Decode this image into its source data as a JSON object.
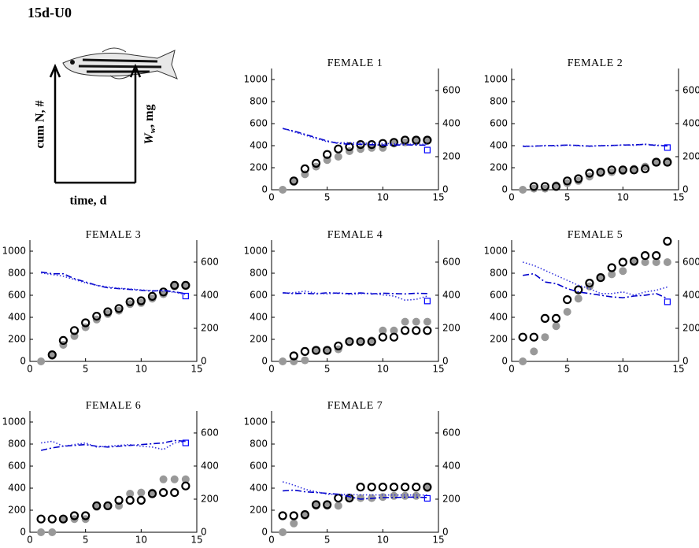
{
  "title": "15d-U0",
  "legend": {
    "ylabel_left": "cum N, #",
    "ylabel_right": {
      "symbol": "W",
      "subscript": "w",
      "unit": ", mg"
    },
    "xlabel": "time, d"
  },
  "chart_data": [
    {
      "type": "scatter",
      "title": "FEMALE 1",
      "x": [
        1,
        2,
        3,
        4,
        5,
        6,
        7,
        8,
        9,
        10,
        11,
        12,
        13,
        14
      ],
      "xlim": [
        0,
        15
      ],
      "xticks": [
        0,
        5,
        10,
        15
      ],
      "ylim": [
        0,
        1100
      ],
      "yticks": [
        0,
        200,
        400,
        600,
        800,
        1000
      ],
      "y2lim": [
        0,
        733
      ],
      "y2ticks": [
        0,
        200,
        400,
        600
      ],
      "series": [
        {
          "color": "#999999",
          "marker": "filled-circle",
          "line": "none",
          "values": [
            0,
            70,
            140,
            210,
            270,
            300,
            350,
            370,
            380,
            380,
            420,
            430,
            440,
            450
          ]
        },
        {
          "color": "#000000",
          "marker": "open-circle",
          "line": "none",
          "values": [
            null,
            80,
            190,
            240,
            320,
            370,
            390,
            410,
            410,
            420,
            430,
            450,
            450,
            450
          ]
        },
        {
          "color": "#0000cc",
          "marker": "none",
          "line": "dash-dot",
          "axis": "y2",
          "values": [
            370,
            355,
            335,
            315,
            295,
            280,
            275,
            275,
            272,
            270,
            270,
            272,
            270,
            270
          ]
        },
        {
          "color": "#3333dd",
          "marker": "none",
          "line": "dotted",
          "axis": "y2",
          "values": [
            372,
            350,
            330,
            310,
            290,
            285,
            285,
            283,
            280,
            280,
            278,
            276,
            275,
            275
          ]
        },
        {
          "color": "#0000ff",
          "marker": "square",
          "line": "none",
          "axis": "y2",
          "values": [
            null,
            null,
            null,
            null,
            null,
            null,
            null,
            null,
            null,
            null,
            null,
            null,
            null,
            240
          ]
        }
      ]
    },
    {
      "type": "scatter",
      "title": "FEMALE 2",
      "x": [
        1,
        2,
        3,
        4,
        5,
        6,
        7,
        8,
        9,
        10,
        11,
        12,
        13,
        14
      ],
      "xlim": [
        0,
        15
      ],
      "xticks": [
        0,
        5,
        10,
        15
      ],
      "ylim": [
        0,
        1100
      ],
      "yticks": [
        0,
        200,
        400,
        600,
        800,
        1000
      ],
      "y2lim": [
        0,
        733
      ],
      "y2ticks": [
        0,
        200,
        400,
        600
      ],
      "series": [
        {
          "color": "#999999",
          "marker": "filled-circle",
          "line": "none",
          "values": [
            0,
            10,
            10,
            40,
            60,
            80,
            120,
            150,
            160,
            170,
            190,
            210,
            250,
            260
          ]
        },
        {
          "color": "#000000",
          "marker": "open-circle",
          "line": "none",
          "values": [
            null,
            30,
            30,
            30,
            80,
            100,
            150,
            160,
            180,
            180,
            180,
            190,
            250,
            250
          ]
        },
        {
          "color": "#0000cc",
          "marker": "none",
          "line": "dash-dot",
          "axis": "y2",
          "values": [
            262,
            264,
            266,
            268,
            270,
            268,
            264,
            266,
            268,
            270,
            272,
            274,
            268,
            265
          ]
        },
        {
          "color": "#3333dd",
          "marker": "none",
          "line": "dotted",
          "axis": "y2",
          "values": [
            265,
            262,
            268,
            264,
            270,
            266,
            262,
            268,
            266,
            272,
            268,
            276,
            270,
            266
          ]
        },
        {
          "color": "#0000ff",
          "marker": "square",
          "line": "none",
          "axis": "y2",
          "values": [
            null,
            null,
            null,
            null,
            null,
            null,
            null,
            null,
            null,
            null,
            null,
            null,
            null,
            255
          ]
        }
      ]
    },
    {
      "type": "scatter",
      "title": "FEMALE 3",
      "x": [
        1,
        2,
        3,
        4,
        5,
        6,
        7,
        8,
        9,
        10,
        11,
        12,
        13,
        14
      ],
      "xlim": [
        0,
        15
      ],
      "xticks": [
        0,
        5,
        10,
        15
      ],
      "ylim": [
        0,
        1100
      ],
      "yticks": [
        0,
        200,
        400,
        600,
        800,
        1000
      ],
      "y2lim": [
        0,
        733
      ],
      "y2ticks": [
        0,
        200,
        400,
        600
      ],
      "series": [
        {
          "color": "#999999",
          "marker": "filled-circle",
          "line": "none",
          "values": [
            0,
            50,
            150,
            230,
            310,
            380,
            430,
            460,
            520,
            530,
            570,
            610,
            680,
            690
          ]
        },
        {
          "color": "#000000",
          "marker": "open-circle",
          "line": "none",
          "values": [
            null,
            60,
            190,
            280,
            350,
            410,
            450,
            480,
            540,
            550,
            590,
            630,
            690,
            690
          ]
        },
        {
          "color": "#0000cc",
          "marker": "none",
          "line": "dash-dot",
          "axis": "y2",
          "values": [
            540,
            530,
            530,
            500,
            480,
            460,
            445,
            440,
            435,
            430,
            425,
            430,
            420,
            410
          ]
        },
        {
          "color": "#3333dd",
          "marker": "none",
          "line": "dotted",
          "axis": "y2",
          "values": [
            535,
            525,
            515,
            495,
            475,
            460,
            450,
            442,
            438,
            432,
            428,
            425,
            418,
            405
          ]
        },
        {
          "color": "#0000ff",
          "marker": "square",
          "line": "none",
          "axis": "y2",
          "values": [
            null,
            null,
            null,
            null,
            null,
            null,
            null,
            null,
            null,
            null,
            null,
            null,
            null,
            395
          ]
        }
      ]
    },
    {
      "type": "scatter",
      "title": "FEMALE 4",
      "x": [
        1,
        2,
        3,
        4,
        5,
        6,
        7,
        8,
        9,
        10,
        11,
        12,
        13,
        14
      ],
      "xlim": [
        0,
        15
      ],
      "xticks": [
        0,
        5,
        10,
        15
      ],
      "ylim": [
        0,
        1100
      ],
      "yticks": [
        0,
        200,
        400,
        600,
        800,
        1000
      ],
      "y2lim": [
        0,
        733
      ],
      "y2ticks": [
        0,
        200,
        400,
        600
      ],
      "series": [
        {
          "color": "#999999",
          "marker": "filled-circle",
          "line": "none",
          "values": [
            0,
            0,
            10,
            100,
            100,
            110,
            180,
            180,
            190,
            280,
            280,
            360,
            360,
            360
          ]
        },
        {
          "color": "#000000",
          "marker": "open-circle",
          "line": "none",
          "values": [
            null,
            50,
            90,
            100,
            100,
            140,
            180,
            180,
            180,
            220,
            220,
            280,
            280,
            280
          ]
        },
        {
          "color": "#0000cc",
          "marker": "none",
          "line": "dash-dot",
          "axis": "y2",
          "values": [
            415,
            410,
            412,
            408,
            415,
            412,
            410,
            414,
            408,
            412,
            410,
            408,
            412,
            410
          ]
        },
        {
          "color": "#3333dd",
          "marker": "none",
          "line": "dotted",
          "axis": "y2",
          "values": [
            412,
            415,
            425,
            412,
            408,
            415,
            405,
            410,
            412,
            402,
            395,
            370,
            375,
            395
          ]
        },
        {
          "color": "#0000ff",
          "marker": "square",
          "line": "none",
          "axis": "y2",
          "values": [
            null,
            null,
            null,
            null,
            null,
            null,
            null,
            null,
            null,
            null,
            null,
            null,
            null,
            365
          ]
        }
      ]
    },
    {
      "type": "scatter",
      "title": "FEMALE 5",
      "x": [
        1,
        2,
        3,
        4,
        5,
        6,
        7,
        8,
        9,
        10,
        11,
        12,
        13,
        14
      ],
      "xlim": [
        0,
        15
      ],
      "xticks": [
        0,
        5,
        10,
        15
      ],
      "ylim": [
        0,
        1100
      ],
      "yticks": [
        0,
        200,
        400,
        600,
        800,
        1000
      ],
      "y2lim": [
        0,
        733
      ],
      "y2ticks": [
        0,
        200,
        400,
        600
      ],
      "series": [
        {
          "color": "#999999",
          "marker": "filled-circle",
          "line": "none",
          "values": [
            0,
            90,
            220,
            320,
            450,
            570,
            680,
            760,
            790,
            820,
            900,
            900,
            900,
            900
          ]
        },
        {
          "color": "#000000",
          "marker": "open-circle",
          "line": "none",
          "values": [
            220,
            220,
            390,
            390,
            560,
            650,
            710,
            760,
            850,
            900,
            910,
            960,
            960,
            1090
          ]
        },
        {
          "color": "#0000cc",
          "marker": "none",
          "line": "dash-dot",
          "axis": "y2",
          "values": [
            520,
            530,
            480,
            470,
            440,
            420,
            410,
            400,
            390,
            385,
            395,
            400,
            410,
            380
          ]
        },
        {
          "color": "#3333dd",
          "marker": "none",
          "line": "dotted",
          "axis": "y2",
          "values": [
            600,
            580,
            550,
            520,
            490,
            460,
            440,
            410,
            410,
            420,
            400,
            420,
            430,
            450
          ]
        },
        {
          "color": "#0000ff",
          "marker": "square",
          "line": "none",
          "axis": "y2",
          "values": [
            null,
            null,
            null,
            null,
            null,
            null,
            null,
            null,
            null,
            null,
            null,
            null,
            null,
            360
          ]
        }
      ]
    },
    {
      "type": "scatter",
      "title": "FEMALE 6",
      "x": [
        1,
        2,
        3,
        4,
        5,
        6,
        7,
        8,
        9,
        10,
        11,
        12,
        13,
        14
      ],
      "xlim": [
        0,
        15
      ],
      "xticks": [
        0,
        5,
        10,
        15
      ],
      "ylim": [
        0,
        1100
      ],
      "yticks": [
        0,
        200,
        400,
        600,
        800,
        1000
      ],
      "y2lim": [
        0,
        733
      ],
      "y2ticks": [
        0,
        200,
        400,
        600
      ],
      "series": [
        {
          "color": "#999999",
          "marker": "filled-circle",
          "line": "none",
          "values": [
            0,
            0,
            120,
            120,
            120,
            230,
            240,
            240,
            350,
            360,
            360,
            480,
            480,
            480
          ]
        },
        {
          "color": "#000000",
          "marker": "open-circle",
          "line": "none",
          "values": [
            120,
            120,
            120,
            150,
            150,
            240,
            240,
            290,
            290,
            290,
            350,
            360,
            360,
            420
          ]
        },
        {
          "color": "#0000cc",
          "marker": "none",
          "line": "dash-dot",
          "axis": "y2",
          "values": [
            495,
            510,
            520,
            525,
            530,
            520,
            515,
            520,
            525,
            530,
            535,
            540,
            555,
            550
          ]
        },
        {
          "color": "#3333dd",
          "marker": "none",
          "line": "dotted",
          "axis": "y2",
          "values": [
            540,
            550,
            520,
            530,
            540,
            515,
            520,
            525,
            530,
            520,
            515,
            500,
            540,
            550
          ]
        },
        {
          "color": "#0000ff",
          "marker": "square",
          "line": "none",
          "axis": "y2",
          "values": [
            null,
            null,
            null,
            null,
            null,
            null,
            null,
            null,
            null,
            null,
            null,
            null,
            null,
            540
          ]
        }
      ]
    },
    {
      "type": "scatter",
      "title": "FEMALE 7",
      "x": [
        1,
        2,
        3,
        4,
        5,
        6,
        7,
        8,
        9,
        10,
        11,
        12,
        13,
        14
      ],
      "xlim": [
        0,
        15
      ],
      "xticks": [
        0,
        5,
        10,
        15
      ],
      "ylim": [
        0,
        1100
      ],
      "yticks": [
        0,
        200,
        400,
        600,
        800,
        1000
      ],
      "y2lim": [
        0,
        733
      ],
      "y2ticks": [
        0,
        200,
        400,
        600
      ],
      "series": [
        {
          "color": "#999999",
          "marker": "filled-circle",
          "line": "none",
          "values": [
            0,
            80,
            150,
            240,
            240,
            240,
            310,
            310,
            310,
            320,
            330,
            330,
            330,
            400
          ]
        },
        {
          "color": "#000000",
          "marker": "open-circle",
          "line": "none",
          "values": [
            150,
            150,
            160,
            250,
            250,
            310,
            310,
            410,
            410,
            410,
            410,
            410,
            410,
            410
          ]
        },
        {
          "color": "#0000cc",
          "marker": "none",
          "line": "dash-dot",
          "axis": "y2",
          "values": [
            250,
            255,
            245,
            240,
            235,
            230,
            215,
            200,
            205,
            210,
            210,
            212,
            212,
            210
          ]
        },
        {
          "color": "#3333dd",
          "marker": "none",
          "line": "dotted",
          "axis": "y2",
          "values": [
            305,
            285,
            260,
            245,
            230,
            230,
            228,
            226,
            226,
            225,
            225,
            225,
            225,
            225
          ]
        },
        {
          "color": "#0000ff",
          "marker": "square",
          "line": "none",
          "axis": "y2",
          "values": [
            null,
            null,
            null,
            null,
            null,
            null,
            null,
            null,
            null,
            null,
            null,
            null,
            null,
            205
          ]
        }
      ]
    }
  ]
}
